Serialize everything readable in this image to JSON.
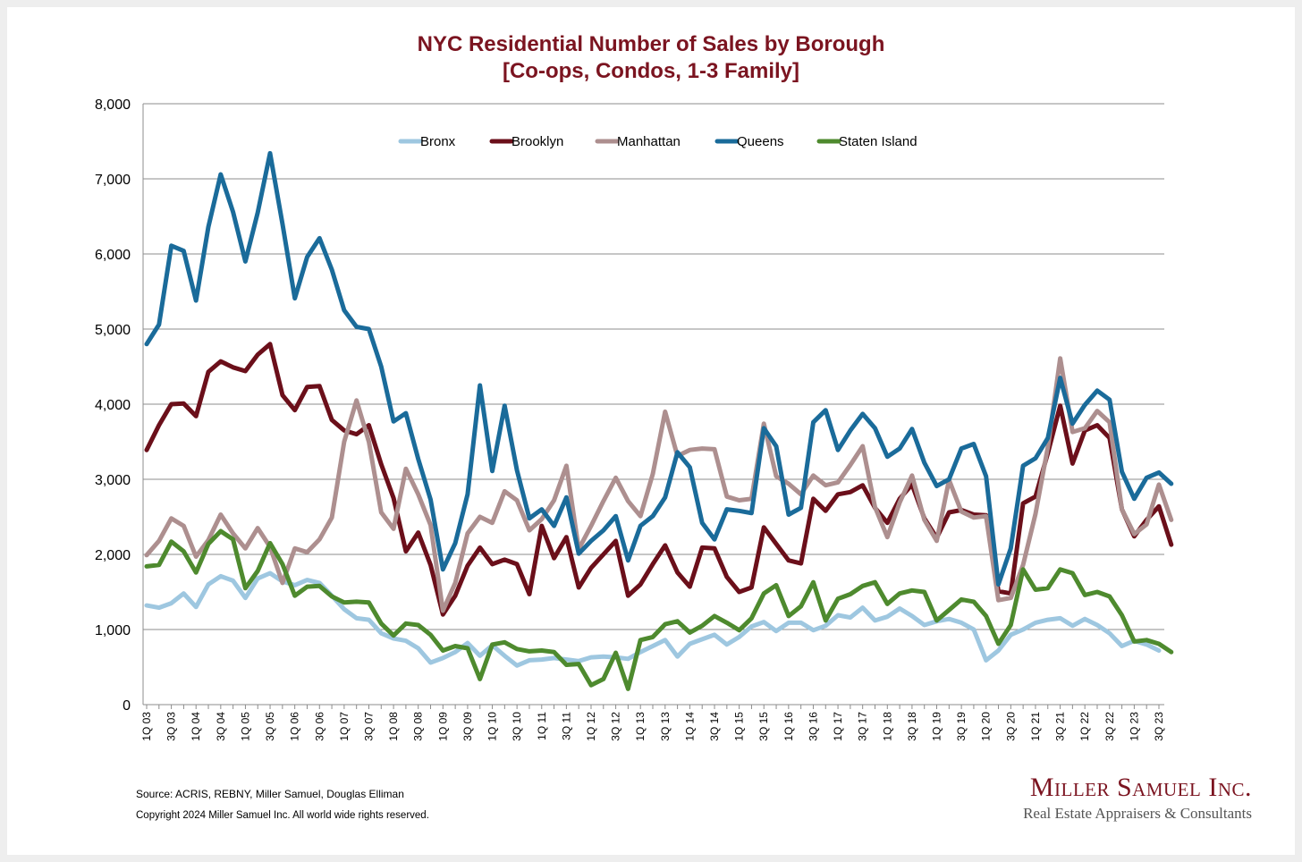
{
  "chart_data": {
    "type": "line",
    "title": "NYC Residential Number of Sales by Borough",
    "subtitle": "[Co-ops, Condos, 1-3 Family]",
    "xlabel": "",
    "ylabel": "",
    "ylim": [
      0,
      8000
    ],
    "yticks": [
      "0",
      "1,000",
      "2,000",
      "3,000",
      "4,000",
      "5,000",
      "6,000",
      "7,000",
      "8,000"
    ],
    "grid": true,
    "legend_position": "top-center",
    "x_tick_labels": [
      "1Q 03",
      "3Q 03",
      "1Q 04",
      "3Q 04",
      "1Q 05",
      "3Q 05",
      "1Q 06",
      "3Q 06",
      "1Q 07",
      "3Q 07",
      "1Q 08",
      "3Q 08",
      "1Q 09",
      "3Q 09",
      "1Q 10",
      "3Q 10",
      "1Q 11",
      "3Q 11",
      "1Q 12",
      "3Q 12",
      "1Q 13",
      "3Q 13",
      "1Q 14",
      "3Q 14",
      "1Q 15",
      "3Q 15",
      "1Q 16",
      "3Q 16",
      "1Q 17",
      "3Q 17",
      "1Q 18",
      "3Q 18",
      "1Q 19",
      "3Q 19",
      "1Q 20",
      "3Q 20",
      "1Q 21",
      "3Q 21",
      "1Q 22",
      "3Q 22",
      "1Q 23",
      "3Q 23"
    ],
    "series": [
      {
        "name": "Bronx",
        "color": "#9ec7e0",
        "values": [
          1320,
          1290,
          1350,
          1480,
          1300,
          1600,
          1710,
          1650,
          1420,
          1680,
          1750,
          1640,
          1590,
          1660,
          1620,
          1450,
          1270,
          1150,
          1130,
          950,
          880,
          850,
          750,
          560,
          620,
          700,
          820,
          650,
          790,
          650,
          520,
          590,
          600,
          620,
          600,
          580,
          630,
          640,
          630,
          610,
          700,
          780,
          860,
          640,
          810,
          870,
          930,
          800,
          900,
          1040,
          1100,
          980,
          1090,
          1090,
          990,
          1050,
          1190,
          1160,
          1290,
          1120,
          1170,
          1280,
          1180,
          1060,
          1110,
          1140,
          1090,
          1000,
          590,
          720,
          930,
          1000,
          1090,
          1130,
          1150,
          1050,
          1140,
          1060,
          950,
          780,
          850,
          800,
          720
        ]
      },
      {
        "name": "Brooklyn",
        "color": "#6b0f1a",
        "values": [
          3390,
          3720,
          4000,
          4010,
          3840,
          4430,
          4570,
          4490,
          4440,
          4660,
          4800,
          4120,
          3920,
          4230,
          4240,
          3790,
          3650,
          3600,
          3720,
          3200,
          2750,
          2040,
          2290,
          1860,
          1200,
          1450,
          1850,
          2090,
          1870,
          1930,
          1870,
          1470,
          2380,
          1950,
          2230,
          1560,
          1820,
          2000,
          2180,
          1450,
          1600,
          1870,
          2120,
          1760,
          1570,
          2090,
          2080,
          1700,
          1500,
          1560,
          2360,
          2140,
          1920,
          1880,
          2740,
          2580,
          2800,
          2830,
          2920,
          2620,
          2420,
          2740,
          2930,
          2480,
          2220,
          2560,
          2590,
          2530,
          2520,
          1510,
          1480,
          2680,
          2770,
          3350,
          3980,
          3210,
          3650,
          3720,
          3550,
          2600,
          2240,
          2460,
          2640,
          2130
        ]
      },
      {
        "name": "Manhattan",
        "color": "#ad8f8f",
        "values": [
          1990,
          2180,
          2480,
          2380,
          1970,
          2190,
          2530,
          2280,
          2080,
          2350,
          2100,
          1620,
          2080,
          2030,
          2200,
          2490,
          3500,
          4050,
          3500,
          2560,
          2340,
          3140,
          2800,
          2390,
          1250,
          1620,
          2280,
          2500,
          2420,
          2840,
          2720,
          2320,
          2470,
          2720,
          3180,
          2070,
          2380,
          2710,
          3020,
          2710,
          2510,
          3070,
          3900,
          3310,
          3390,
          3410,
          3400,
          2770,
          2720,
          2740,
          3740,
          3040,
          2940,
          2800,
          3050,
          2920,
          2960,
          3190,
          3440,
          2630,
          2230,
          2690,
          3050,
          2460,
          2180,
          2990,
          2570,
          2490,
          2510,
          1390,
          1420,
          1860,
          2540,
          3430,
          4610,
          3630,
          3680,
          3910,
          3760,
          2600,
          2270,
          2400,
          2930,
          2460
        ]
      },
      {
        "name": "Queens",
        "color": "#1a6b9a",
        "values": [
          4800,
          5060,
          6110,
          6040,
          5380,
          6360,
          7060,
          6560,
          5900,
          6550,
          7340,
          6400,
          5410,
          5960,
          6210,
          5790,
          5250,
          5030,
          5000,
          4500,
          3770,
          3880,
          3270,
          2730,
          1800,
          2150,
          2800,
          4250,
          3110,
          3980,
          3120,
          2480,
          2600,
          2380,
          2760,
          2010,
          2180,
          2320,
          2510,
          1920,
          2380,
          2510,
          2760,
          3360,
          3160,
          2420,
          2200,
          2600,
          2580,
          2550,
          3680,
          3440,
          2530,
          2620,
          3760,
          3920,
          3390,
          3650,
          3870,
          3680,
          3300,
          3410,
          3670,
          3220,
          2910,
          3000,
          3410,
          3470,
          3040,
          1600,
          2080,
          3180,
          3280,
          3550,
          4350,
          3740,
          3990,
          4180,
          4060,
          3100,
          2740,
          3020,
          3090,
          2940
        ]
      },
      {
        "name": "Staten Island",
        "color": "#4e8a2e",
        "values": [
          1840,
          1860,
          2170,
          2040,
          1760,
          2140,
          2310,
          2200,
          1550,
          1780,
          2150,
          1870,
          1450,
          1570,
          1580,
          1440,
          1360,
          1370,
          1360,
          1080,
          920,
          1080,
          1060,
          930,
          720,
          780,
          750,
          340,
          800,
          830,
          740,
          710,
          720,
          700,
          530,
          540,
          260,
          340,
          690,
          210,
          860,
          900,
          1070,
          1110,
          960,
          1050,
          1180,
          1090,
          990,
          1150,
          1480,
          1590,
          1180,
          1310,
          1630,
          1120,
          1410,
          1470,
          1580,
          1630,
          1340,
          1480,
          1520,
          1500,
          1120,
          1260,
          1400,
          1370,
          1180,
          810,
          1060,
          1800,
          1530,
          1550,
          1800,
          1750,
          1460,
          1500,
          1440,
          1190,
          840,
          860,
          810,
          700
        ]
      }
    ],
    "source": "Source: ACRIS, REBNY, Miller Samuel, Douglas Elliman",
    "copyright": "Copyright 2024 Miller Samuel Inc.  All world wide rights reserved."
  },
  "logo": {
    "name": "Miller Samuel Inc.",
    "tagline": "Real Estate Appraisers & Consultants"
  }
}
